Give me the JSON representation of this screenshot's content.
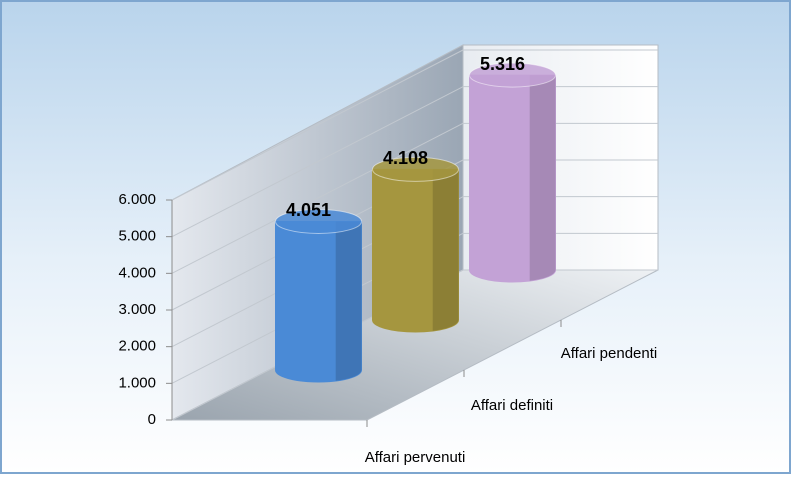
{
  "chart_data": {
    "type": "cylinder",
    "categories": [
      "Affari pervenuti",
      "Affari definiti",
      "Affari pendenti"
    ],
    "values": [
      4051,
      4108,
      5316
    ],
    "value_labels": [
      "4.051",
      "4.108",
      "5.316"
    ],
    "colors": [
      "#4a8ad6",
      "#a5963f",
      "#c3a2d6"
    ],
    "ylim": [
      0,
      6000
    ],
    "yticks": [
      0,
      {
        "value": 1000,
        "label": "1.000"
      },
      {
        "value": 2000,
        "label": "2.000"
      },
      {
        "value": 3000,
        "label": "3.000"
      },
      {
        "value": 4000,
        "label": "4.000"
      },
      {
        "value": 5000,
        "label": "5.000"
      },
      {
        "value": 6000,
        "label": "6.000"
      }
    ],
    "grid": true
  }
}
